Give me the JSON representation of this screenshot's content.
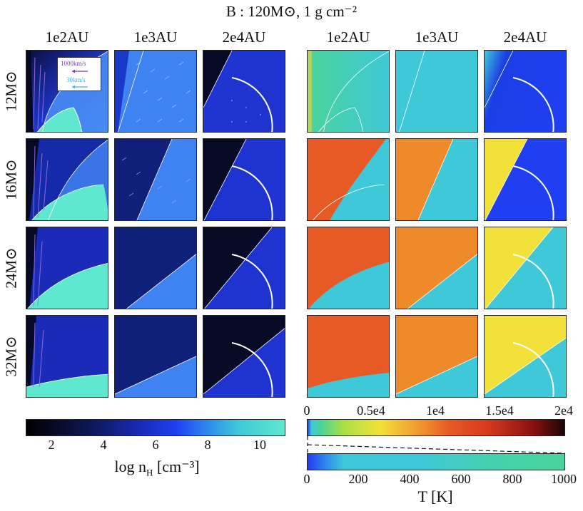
{
  "figure": {
    "title": "B : 120M⊙, 1 g cm⁻²",
    "column_headers": [
      "1e2AU",
      "1e3AU",
      "2e4AU",
      "1e2AU",
      "1e3AU",
      "2e4AU"
    ],
    "row_labels": [
      "12M⊙",
      "16M⊙",
      "24M⊙",
      "32M⊙"
    ]
  },
  "legend": {
    "fast_label": "1000km/s",
    "slow_label": "30km/s",
    "fast_color": "#7a33c9",
    "slow_color": "#3bb8dd"
  },
  "colorbar_density": {
    "label": "log n",
    "label_sub": "H",
    "label_unit": " [cm⁻³]",
    "range": [
      1,
      11
    ],
    "ticks": [
      "2",
      "4",
      "6",
      "8",
      "10"
    ]
  },
  "colorbar_temperature_full": {
    "range": [
      0,
      20000
    ],
    "ticks": [
      "0",
      "0.5e4",
      "1e4",
      "1.5e4",
      "2e4"
    ]
  },
  "colorbar_temperature_zoom": {
    "range": [
      0,
      1000
    ],
    "ticks": [
      "0",
      "200",
      "400",
      "600",
      "800",
      "1000"
    ],
    "label": "T [K]"
  },
  "colors": {
    "dense": "#5ee8cf",
    "diffuse": "#1a2bb8",
    "very_diffuse": "#070b28",
    "mid": "#3e7ef5",
    "t_cool": "#3fc8d8",
    "t_warm": "#e85a25",
    "t_hot": "#f2d43a",
    "t_green": "#4ad39a"
  }
}
